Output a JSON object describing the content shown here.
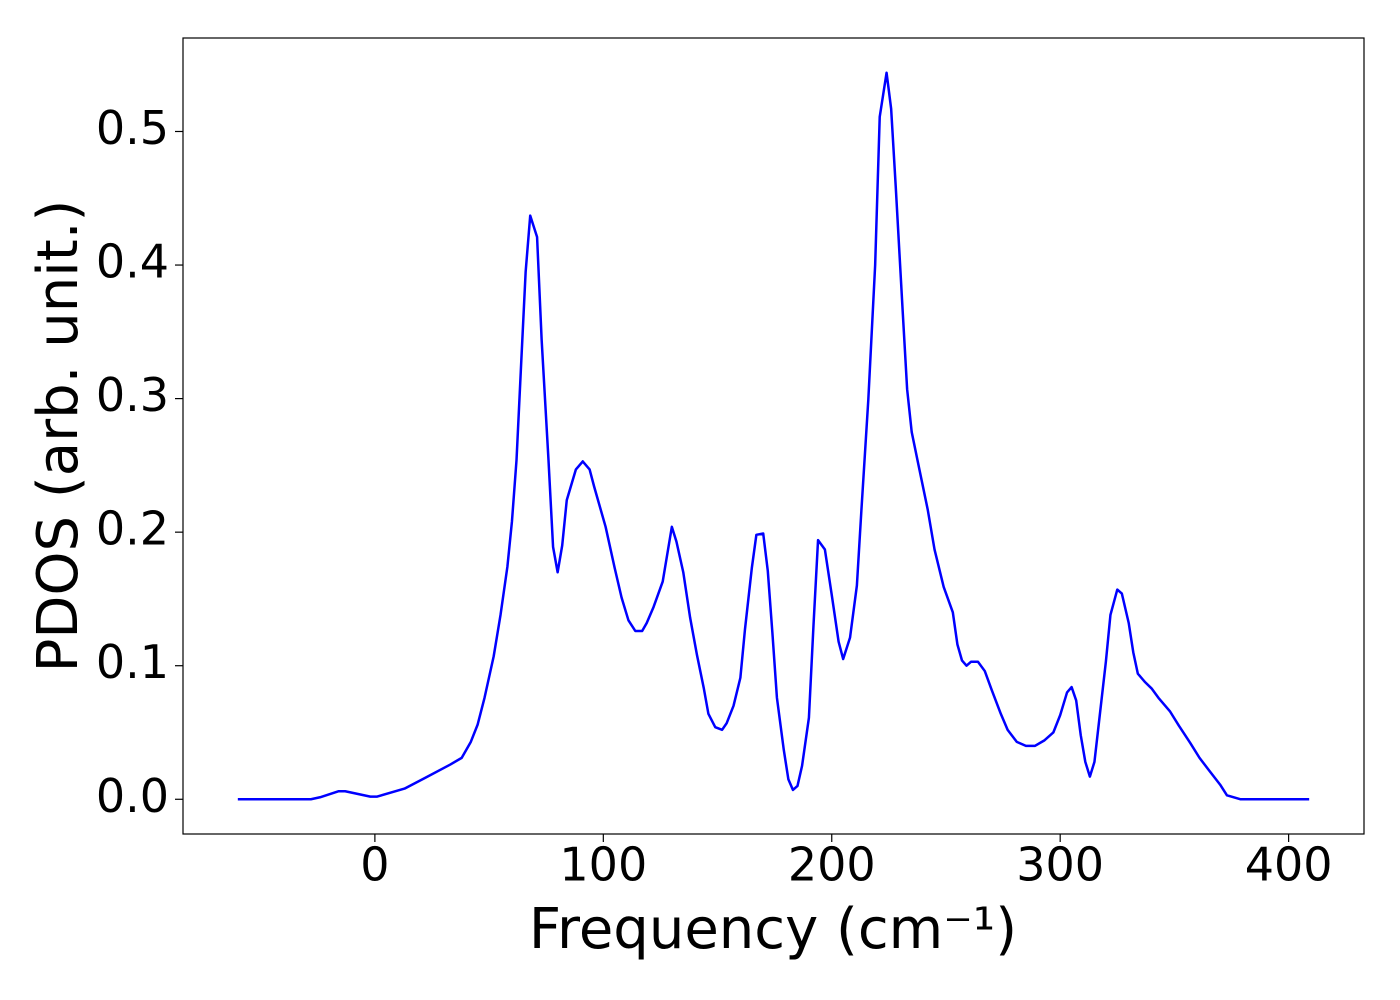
{
  "chart_data": {
    "type": "line",
    "xlabel": "Frequency (cm⁻¹)",
    "ylabel": "PDOS (arb. unit.)",
    "x": [
      -60,
      -28,
      -24,
      -16,
      -13,
      -2,
      1,
      13,
      22,
      33,
      38,
      42,
      45,
      48,
      52,
      55,
      58,
      60,
      62,
      64,
      66,
      68,
      71,
      73,
      76,
      78,
      80,
      82,
      84,
      88,
      91,
      94,
      96,
      101,
      105,
      108,
      111,
      114,
      117,
      119,
      122,
      126,
      130,
      132,
      135,
      138,
      141,
      144,
      146,
      149,
      152,
      154,
      157,
      160,
      162,
      165,
      167,
      170,
      172,
      174,
      176,
      179,
      181,
      183,
      185,
      187,
      190,
      192,
      194,
      197,
      200,
      203,
      205,
      208,
      211,
      213,
      216,
      219,
      221,
      224,
      226,
      228,
      231,
      233,
      235,
      238,
      242,
      245,
      249,
      253,
      255,
      257,
      259,
      261,
      264,
      267,
      270,
      274,
      277,
      281,
      285,
      289,
      293,
      297,
      300,
      303,
      305,
      307,
      309,
      311,
      313,
      315,
      317,
      320,
      322,
      325,
      327,
      330,
      332,
      334,
      337,
      340,
      343,
      348,
      352,
      357,
      361,
      365,
      370,
      373,
      379,
      409
    ],
    "series": [
      {
        "color": "#0000ff",
        "values": [
          0,
          0,
          0.0015,
          0.006,
          0.006,
          0.002,
          0.002,
          0.008,
          0.016,
          0.026,
          0.031,
          0.043,
          0.056,
          0.076,
          0.107,
          0.138,
          0.174,
          0.208,
          0.254,
          0.325,
          0.395,
          0.437,
          0.421,
          0.344,
          0.254,
          0.189,
          0.17,
          0.19,
          0.224,
          0.247,
          0.253,
          0.247,
          0.234,
          0.204,
          0.173,
          0.151,
          0.134,
          0.126,
          0.126,
          0.132,
          0.144,
          0.163,
          0.204,
          0.193,
          0.17,
          0.136,
          0.108,
          0.083,
          0.064,
          0.054,
          0.052,
          0.057,
          0.07,
          0.091,
          0.127,
          0.173,
          0.198,
          0.199,
          0.171,
          0.125,
          0.076,
          0.037,
          0.015,
          0.007,
          0.01,
          0.025,
          0.061,
          0.13,
          0.194,
          0.187,
          0.153,
          0.118,
          0.105,
          0.121,
          0.16,
          0.217,
          0.299,
          0.4,
          0.511,
          0.544,
          0.517,
          0.459,
          0.367,
          0.307,
          0.275,
          0.25,
          0.217,
          0.187,
          0.159,
          0.14,
          0.116,
          0.104,
          0.1,
          0.103,
          0.103,
          0.096,
          0.082,
          0.064,
          0.052,
          0.043,
          0.04,
          0.04,
          0.044,
          0.05,
          0.063,
          0.08,
          0.084,
          0.074,
          0.048,
          0.028,
          0.017,
          0.028,
          0.058,
          0.103,
          0.138,
          0.157,
          0.154,
          0.132,
          0.11,
          0.094,
          0.088,
          0.083,
          0.076,
          0.066,
          0.055,
          0.042,
          0.031,
          0.022,
          0.011,
          0.003,
          0,
          0
        ]
      }
    ],
    "xlim": [
      -84,
      433
    ],
    "ylim": [
      -0.026,
      0.57
    ],
    "xticks": [
      0,
      100,
      200,
      300,
      400
    ],
    "yticks": [
      {
        "value": 0,
        "label": "0.0"
      },
      0.1,
      0.2,
      0.3,
      0.4,
      0.5
    ]
  }
}
